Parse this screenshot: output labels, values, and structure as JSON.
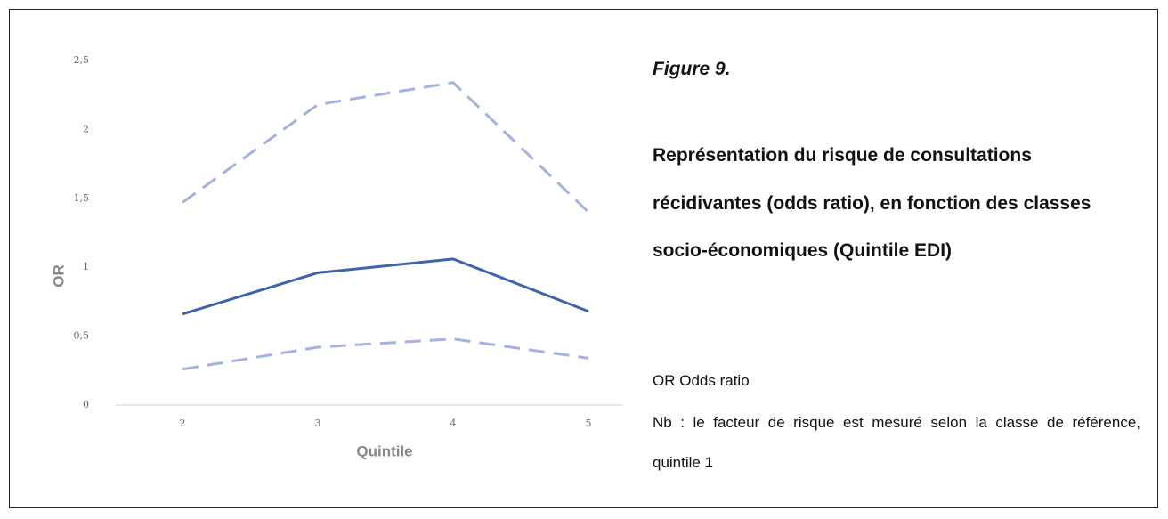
{
  "chart_data": {
    "type": "line",
    "categories": [
      "2",
      "3",
      "4",
      "5"
    ],
    "series": [
      {
        "color": "#a3b3dd",
        "dashed": true,
        "values": [
          1.47,
          2.18,
          2.34,
          1.4
        ]
      },
      {
        "color": "#4062ac",
        "dashed": false,
        "values": [
          0.66,
          0.96,
          1.06,
          0.68
        ]
      },
      {
        "color": "#a3b3dd",
        "dashed": true,
        "values": [
          0.26,
          0.42,
          0.48,
          0.34
        ]
      }
    ],
    "ylim": [
      0,
      2.5
    ],
    "yticks": [
      0,
      {
        "value": 0.5,
        "label": "0,5"
      },
      1,
      {
        "value": 1.5,
        "label": "1,5"
      },
      2,
      {
        "value": 2.5,
        "label": "2,5"
      }
    ],
    "grid": false,
    "x_label": "Quintile",
    "y_label": "OR"
  },
  "caption": {
    "figure": "Figure 9.",
    "title": "Représentation du risque de consultations récidivantes (odds ratio), en fonction des classes socio-économiques (Quintile EDI)",
    "abbreviation": "OR Odds ratio",
    "note": "Nb : le facteur de risque est mesuré selon la classe de référence, quintile 1"
  }
}
